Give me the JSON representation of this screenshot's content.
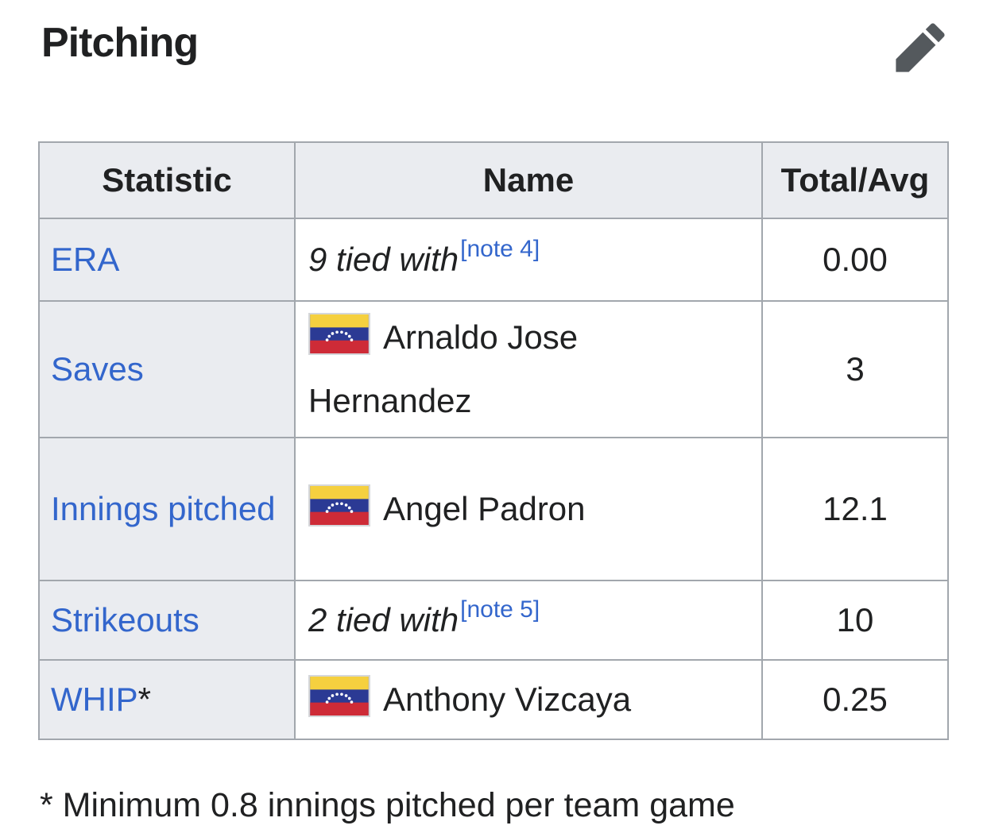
{
  "page": {
    "title": "Pitching",
    "footnote": "* Minimum 0.8 innings pitched per team game"
  },
  "table": {
    "headers": [
      "Statistic",
      "Name",
      "Total/Avg"
    ],
    "rows": [
      {
        "statistic": "ERA",
        "tied_text": "9 tied with",
        "note": "[note 4]",
        "value": "0.00"
      },
      {
        "statistic": "Saves",
        "flag": "venezuela-flag-icon",
        "name": "Arnaldo Jose Hernandez",
        "value": "3"
      },
      {
        "statistic": "Innings pitched",
        "flag": "venezuela-flag-icon",
        "name": "Angel Padron",
        "value": "12.1"
      },
      {
        "statistic": "Strikeouts",
        "tied_text": "2 tied with",
        "note": "[note 5]",
        "value": "10"
      },
      {
        "statistic": "WHIP",
        "marker": "*",
        "flag": "venezuela-flag-icon",
        "name": "Anthony Vizcaya",
        "value": "0.25"
      }
    ]
  },
  "icons": {
    "edit": "pencil-icon",
    "flag": "venezuela-flag-icon"
  },
  "colors": {
    "link": "#3366cc",
    "text": "#202122",
    "table_border": "#a2a7ad",
    "header_background": "#eaecf0",
    "pencil_gray": "#54595d",
    "flag_yellow": "#f5d03f",
    "flag_blue": "#2b3a94",
    "flag_red": "#ce2b37",
    "flag_border": "#d5d7da"
  }
}
